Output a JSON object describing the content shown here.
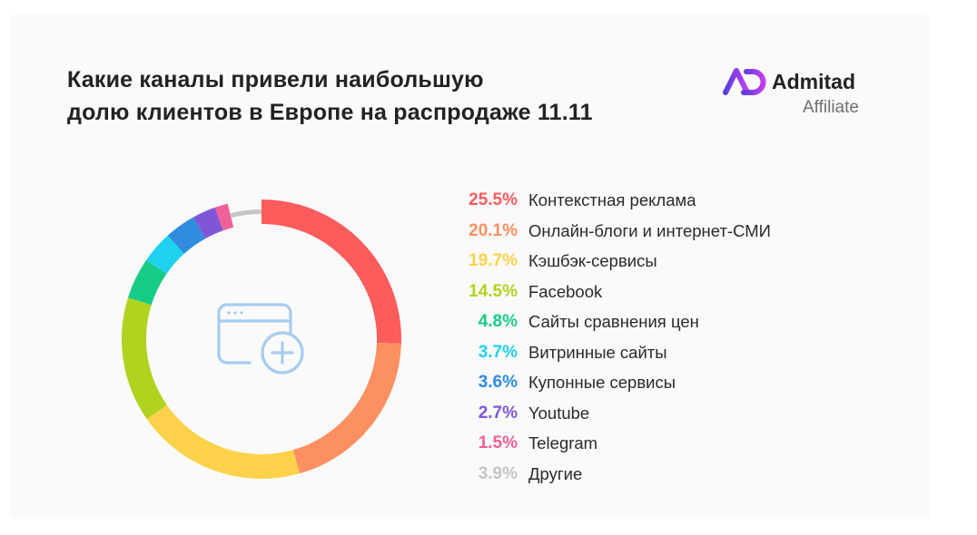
{
  "title": {
    "line1": "Какие каналы привели наибольшую",
    "line2": "долю клиентов в Европе на распродаже 11.11"
  },
  "logo": {
    "name": "Admitad",
    "sub": "Affiliate",
    "gradient_start": "#5b3fe0",
    "gradient_end": "#c23df0"
  },
  "center_icon": "browser-window-plus-icon",
  "chart_data": {
    "type": "pie",
    "variant": "donut",
    "title": "Какие каналы привели наибольшую долю клиентов в Европе на распродаже 11.11",
    "unit": "%",
    "legend_position": "right",
    "slices": [
      {
        "label": "Контекстная реклама",
        "value": 25.5,
        "value_label": "25.5%",
        "color": "#fc5c5c"
      },
      {
        "label": "Онлайн-блоги и интернет-СМИ",
        "value": 20.1,
        "value_label": "20.1%",
        "color": "#fd9060"
      },
      {
        "label": "Кэшбэк-сервисы",
        "value": 19.7,
        "value_label": "19.7%",
        "color": "#fdd24a"
      },
      {
        "label": "Facebook",
        "value": 14.5,
        "value_label": "14.5%",
        "color": "#b0d320"
      },
      {
        "label": "Сайты сравнения цен",
        "value": 4.8,
        "value_label": "4.8%",
        "color": "#17cc87"
      },
      {
        "label": "Витринные сайты",
        "value": 3.7,
        "value_label": "3.7%",
        "color": "#1ed2ef"
      },
      {
        "label": "Купонные сервисы",
        "value": 3.6,
        "value_label": "3.6%",
        "color": "#2f8cde"
      },
      {
        "label": "Youtube",
        "value": 2.7,
        "value_label": "2.7%",
        "color": "#7f56d8"
      },
      {
        "label": "Telegram",
        "value": 1.5,
        "value_label": "1.5%",
        "color": "#f2609a"
      },
      {
        "label": "Другие",
        "value": 3.9,
        "value_label": "3.9%",
        "color": "#c6c6c6"
      }
    ]
  }
}
